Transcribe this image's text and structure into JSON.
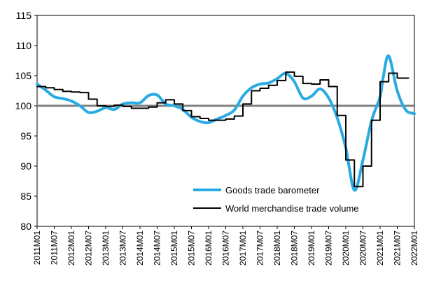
{
  "chart_data": {
    "type": "line",
    "title": "",
    "xlabel": "",
    "ylabel": "",
    "ylim": [
      80,
      115
    ],
    "yticks": [
      80,
      85,
      90,
      95,
      100,
      105,
      110,
      115
    ],
    "xlim": [
      "2011M01",
      "2022M01"
    ],
    "x_tick_labels": [
      "2011M01",
      "2011M07",
      "2012M01",
      "2012M07",
      "2013M01",
      "2013M07",
      "2014M01",
      "2014M07",
      "2015M01",
      "2015M07",
      "2016M01",
      "2016M07",
      "2017M01",
      "2017M07",
      "2018M01",
      "2018M07",
      "2019M01",
      "2019M07",
      "2020M01",
      "2020M07",
      "2021M01",
      "2021M07",
      "2022M01"
    ],
    "reference_line": {
      "y": 100,
      "color": "#808080"
    },
    "legend": {
      "position": "bottom-right",
      "entries": [
        "Goods trade barometer",
        "World merchandise trade volume"
      ]
    },
    "series": [
      {
        "name": "Goods trade barometer",
        "color": "#29abe2",
        "style": "smooth",
        "points": [
          [
            "2011M01",
            103.6
          ],
          [
            "2011M04",
            102.6
          ],
          [
            "2011M07",
            101.5
          ],
          [
            "2011M10",
            101.2
          ],
          [
            "2012M01",
            100.8
          ],
          [
            "2012M04",
            100.0
          ],
          [
            "2012M07",
            98.9
          ],
          [
            "2012M10",
            99.1
          ],
          [
            "2013M01",
            99.7
          ],
          [
            "2013M04",
            99.4
          ],
          [
            "2013M07",
            100.3
          ],
          [
            "2013M10",
            100.5
          ],
          [
            "2014M01",
            100.5
          ],
          [
            "2014M04",
            101.7
          ],
          [
            "2014M07",
            101.8
          ],
          [
            "2014M10",
            100.3
          ],
          [
            "2015M01",
            100.0
          ],
          [
            "2015M04",
            99.4
          ],
          [
            "2015M07",
            98.1
          ],
          [
            "2015M10",
            97.4
          ],
          [
            "2016M01",
            97.2
          ],
          [
            "2016M04",
            97.8
          ],
          [
            "2016M07",
            98.4
          ],
          [
            "2016M10",
            99.3
          ],
          [
            "2017M01",
            101.6
          ],
          [
            "2017M04",
            103.0
          ],
          [
            "2017M07",
            103.6
          ],
          [
            "2017M10",
            103.8
          ],
          [
            "2018M01",
            104.5
          ],
          [
            "2018M04",
            105.4
          ],
          [
            "2018M07",
            104.0
          ],
          [
            "2018M10",
            101.3
          ],
          [
            "2019M01",
            101.6
          ],
          [
            "2019M04",
            102.8
          ],
          [
            "2019M07",
            101.3
          ],
          [
            "2019M10",
            98.0
          ],
          [
            "2020M01",
            93.0
          ],
          [
            "2020M04",
            86.0
          ],
          [
            "2020M07",
            91.0
          ],
          [
            "2020M10",
            97.5
          ],
          [
            "2021M01",
            101.5
          ],
          [
            "2021M02",
            104.5
          ],
          [
            "2021M04",
            108.3
          ],
          [
            "2021M07",
            102.5
          ],
          [
            "2021M10",
            99.3
          ],
          [
            "2022M01",
            98.7
          ]
        ]
      },
      {
        "name": "World merchandise trade volume",
        "color": "#000000",
        "style": "step",
        "points": [
          [
            "2011M01",
            103.2
          ],
          [
            "2011M04",
            103.0
          ],
          [
            "2011M07",
            102.7
          ],
          [
            "2011M10",
            102.4
          ],
          [
            "2012M01",
            102.3
          ],
          [
            "2012M04",
            102.2
          ],
          [
            "2012M07",
            101.1
          ],
          [
            "2012M10",
            100.0
          ],
          [
            "2013M01",
            99.9
          ],
          [
            "2013M04",
            100.1
          ],
          [
            "2013M07",
            99.9
          ],
          [
            "2013M10",
            99.6
          ],
          [
            "2014M01",
            99.6
          ],
          [
            "2014M04",
            99.8
          ],
          [
            "2014M07",
            100.5
          ],
          [
            "2014M10",
            101.0
          ],
          [
            "2015M01",
            100.3
          ],
          [
            "2015M04",
            99.2
          ],
          [
            "2015M07",
            98.2
          ],
          [
            "2015M10",
            97.9
          ],
          [
            "2016M01",
            97.6
          ],
          [
            "2016M04",
            97.6
          ],
          [
            "2016M07",
            97.8
          ],
          [
            "2016M10",
            98.3
          ],
          [
            "2017M01",
            100.3
          ],
          [
            "2017M04",
            102.5
          ],
          [
            "2017M07",
            102.9
          ],
          [
            "2017M10",
            103.4
          ],
          [
            "2018M01",
            104.2
          ],
          [
            "2018M04",
            105.6
          ],
          [
            "2018M07",
            104.9
          ],
          [
            "2018M10",
            103.7
          ],
          [
            "2019M01",
            103.6
          ],
          [
            "2019M04",
            104.3
          ],
          [
            "2019M07",
            103.2
          ],
          [
            "2019M10",
            98.4
          ],
          [
            "2020M01",
            91.0
          ],
          [
            "2020M04",
            86.6
          ],
          [
            "2020M07",
            90.0
          ],
          [
            "2020M10",
            97.6
          ],
          [
            "2021M01",
            104.0
          ],
          [
            "2021M04",
            105.4
          ],
          [
            "2021M07",
            104.6
          ],
          [
            "2021M09",
            104.6
          ]
        ]
      }
    ]
  }
}
